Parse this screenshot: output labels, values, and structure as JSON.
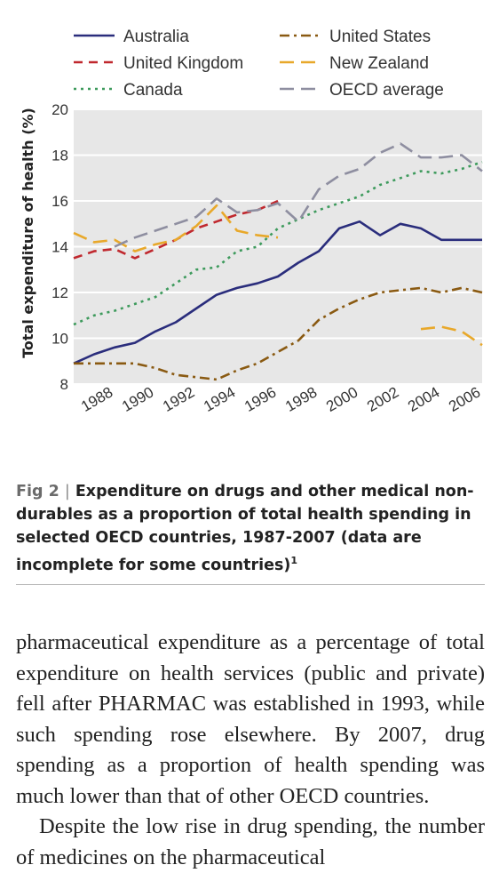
{
  "chart_data": {
    "type": "line",
    "ylabel": "Total expenditure of health (%)",
    "xlabel": "",
    "ylim": [
      8,
      20
    ],
    "xlim": [
      1987,
      2007
    ],
    "y_ticks": [
      8,
      10,
      12,
      14,
      16,
      18,
      20
    ],
    "x_ticks": [
      1988,
      1990,
      1992,
      1994,
      1996,
      1998,
      2000,
      2002,
      2004,
      2006
    ],
    "grid": true,
    "legend_position": "top",
    "series": [
      {
        "name": "Australia",
        "color": "#2a2d7c",
        "dash": "solid",
        "x": [
          1987,
          1988,
          1989,
          1990,
          1991,
          1992,
          1993,
          1994,
          1995,
          1996,
          1997,
          1998,
          1999,
          2000,
          2001,
          2002,
          2003,
          2004,
          2005,
          2006,
          2007
        ],
        "y": [
          8.9,
          9.3,
          9.6,
          9.8,
          10.3,
          10.7,
          11.3,
          11.9,
          12.2,
          12.4,
          12.7,
          13.3,
          13.8,
          14.8,
          15.1,
          14.5,
          15.0,
          14.8,
          14.3,
          14.3,
          14.3
        ]
      },
      {
        "name": "United States",
        "color": "#8a5a12",
        "dash": "dashdot",
        "x": [
          1987,
          1988,
          1989,
          1990,
          1991,
          1992,
          1993,
          1994,
          1995,
          1996,
          1997,
          1998,
          1999,
          2000,
          2001,
          2002,
          2003,
          2004,
          2005,
          2006,
          2007
        ],
        "y": [
          8.9,
          8.9,
          8.9,
          8.9,
          8.7,
          8.4,
          8.3,
          8.2,
          8.6,
          8.9,
          9.4,
          9.9,
          10.8,
          11.3,
          11.7,
          12.0,
          12.1,
          12.2,
          12.0,
          12.2,
          12.0
        ]
      },
      {
        "name": "United Kingdom",
        "color": "#c0282e",
        "dash": "dash",
        "x": [
          1987,
          1988,
          1989,
          1990,
          1991,
          1992,
          1993,
          1994,
          1995,
          1996,
          1997
        ],
        "y": [
          13.5,
          13.8,
          13.9,
          13.5,
          13.9,
          14.3,
          14.8,
          15.1,
          15.4,
          15.6,
          16.0
        ]
      },
      {
        "name": "New Zealand",
        "color": "#e8a82a",
        "dash": "longdash",
        "segments": [
          {
            "x": [
              1987,
              1988,
              1989,
              1990,
              1991,
              1992,
              1993,
              1994,
              1995,
              1996,
              1997
            ],
            "y": [
              14.6,
              14.2,
              14.3,
              13.8,
              14.1,
              14.3,
              14.9,
              15.8,
              14.7,
              14.5,
              14.4
            ]
          },
          {
            "x": [
              2004,
              2005,
              2006,
              2007
            ],
            "y": [
              10.4,
              10.5,
              10.3,
              9.7
            ]
          }
        ]
      },
      {
        "name": "Canada",
        "color": "#3d9a5c",
        "dash": "dot",
        "x": [
          1987,
          1988,
          1989,
          1990,
          1991,
          1992,
          1993,
          1994,
          1995,
          1996,
          1997,
          1998,
          1999,
          2000,
          2001,
          2002,
          2003,
          2004,
          2005,
          2006,
          2007
        ],
        "y": [
          10.6,
          11.0,
          11.2,
          11.5,
          11.8,
          12.4,
          13.0,
          13.1,
          13.8,
          14.0,
          14.8,
          15.2,
          15.6,
          15.9,
          16.2,
          16.7,
          17.0,
          17.3,
          17.2,
          17.4,
          17.7
        ]
      },
      {
        "name": "OECD average",
        "color": "#8e8ea0",
        "dash": "longdash",
        "x": [
          1989,
          1990,
          1991,
          1992,
          1993,
          1994,
          1995,
          1996,
          1997,
          1998,
          1999,
          2000,
          2001,
          2002,
          2003,
          2004,
          2005,
          2006,
          2007
        ],
        "y": [
          14.0,
          14.4,
          14.7,
          15.0,
          15.3,
          16.1,
          15.5,
          15.6,
          15.9,
          15.1,
          16.5,
          17.1,
          17.4,
          18.1,
          18.5,
          17.9,
          17.9,
          18.0,
          17.3
        ]
      }
    ]
  },
  "caption": {
    "figure_label": "Fig 2",
    "separator": "|",
    "text": "Expenditure on drugs and other medical non-durables as a proportion of total health spending in selected OECD countries, 1987-2007 (data are incomplete for some countries)",
    "reference": "1"
  },
  "body": {
    "paragraph1": "pharmaceutical expenditure as a percentage of total expenditure on health services (public and private) fell after PHARMAC was established in 1993, while such spending rose elsewhere. By 2007, drug spending as a proportion of health spending was much lower than that of other OECD countries.",
    "paragraph2": "Despite the low rise in drug spending, the number of medicines on the pharmaceutical"
  }
}
